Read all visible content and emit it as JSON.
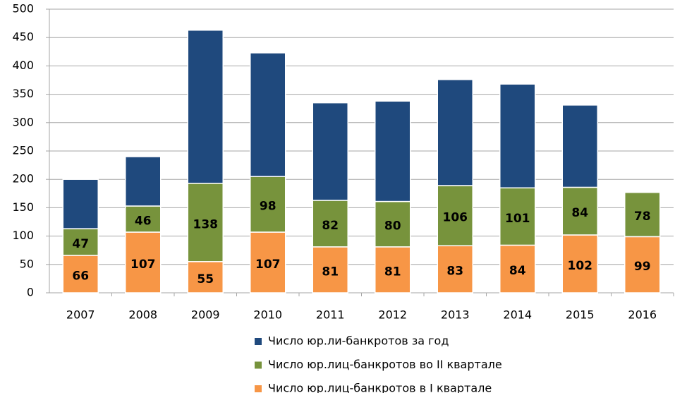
{
  "chart_data": {
    "type": "stacked_bar",
    "categories": [
      "2007",
      "2008",
      "2009",
      "2010",
      "2011",
      "2012",
      "2013",
      "2014",
      "2015",
      "2016"
    ],
    "series": [
      {
        "name": "Число юр.лиц-банкротов в I квартале",
        "color": "#f79646",
        "show_labels": true,
        "values": [
          66,
          107,
          55,
          107,
          81,
          81,
          83,
          84,
          102,
          99
        ]
      },
      {
        "name": "Число юр.лиц-банкротов во II квартале",
        "color": "#77933c",
        "show_labels": true,
        "values": [
          47,
          46,
          138,
          98,
          82,
          80,
          106,
          101,
          84,
          78
        ]
      },
      {
        "name": "Число юр.ли-банкротов за год",
        "color": "#1f497d",
        "show_labels": false,
        "values": [
          87,
          87,
          270,
          218,
          172,
          177,
          187,
          183,
          145,
          null
        ]
      }
    ],
    "ylim": [
      0,
      500
    ],
    "yticks": [
      0,
      50,
      100,
      150,
      200,
      250,
      300,
      350,
      400,
      450,
      500
    ],
    "grid": true
  }
}
